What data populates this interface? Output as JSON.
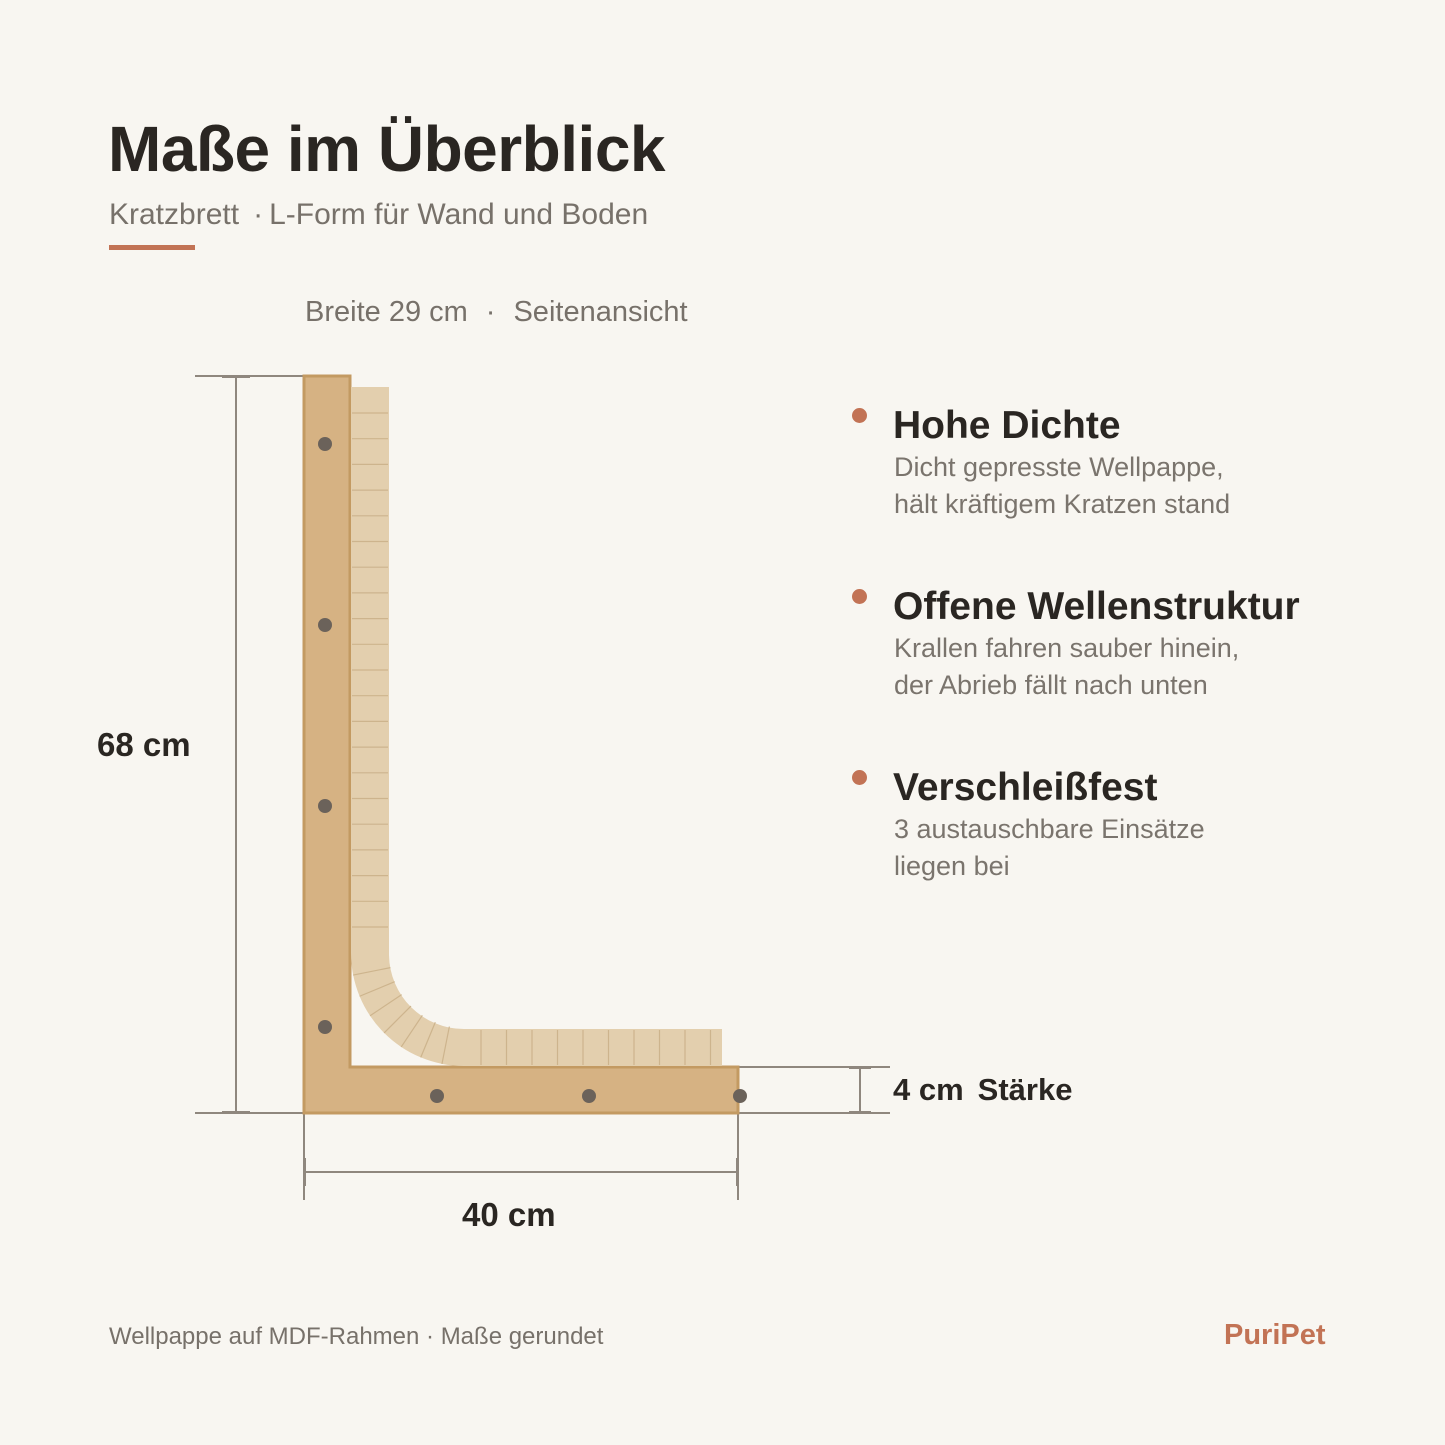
{
  "header": {
    "title": "Maße im Überblick",
    "subtitle_product": "Kratzbrett",
    "subtitle_separator": "·",
    "subtitle_detail": "L-Form für Wand und Boden",
    "accent_color": "#c27355"
  },
  "diagram": {
    "caption_width": "Breite 29 cm",
    "caption_dot": "·",
    "caption_view": "Seitenansicht",
    "height_label": "68 cm",
    "width_label": "40 cm",
    "thickness_value": "4 cm",
    "thickness_label": "Stärke",
    "frame_color": "#d6b283",
    "cardboard_color": "#e3cfae",
    "screw_color": "#6b625a"
  },
  "features": [
    {
      "icon": "bullet-dot",
      "title": "Hohe Dichte",
      "lines": [
        "Dicht gepresste Wellpappe,",
        "hält kräftigem Kratzen stand"
      ]
    },
    {
      "icon": "bullet-dot",
      "title": "Offene Wellenstruktur",
      "lines": [
        "Krallen fahren sauber hinein,",
        "der Abrieb fällt nach unten"
      ]
    },
    {
      "icon": "bullet-dot",
      "title": "Verschleißfest",
      "lines": [
        "3 austauschbare Einsätze",
        "liegen bei"
      ]
    }
  ],
  "footer": {
    "note": "Wellpappe auf MDF-Rahmen · Maße gerundet",
    "brand": "PuriPet"
  }
}
